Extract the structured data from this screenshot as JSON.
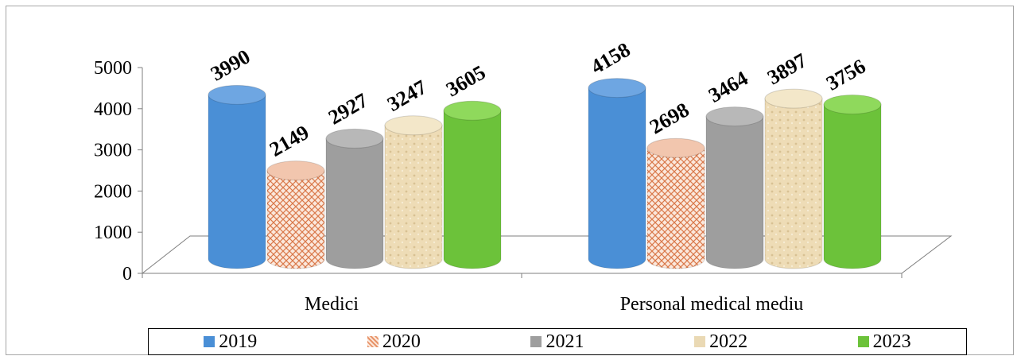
{
  "chart_data": {
    "type": "bar",
    "categories": [
      "Medici",
      "Personal medical mediu"
    ],
    "series": [
      {
        "name": "2019",
        "values": [
          3990,
          4158
        ],
        "color": "#4a8fd6"
      },
      {
        "name": "2020",
        "values": [
          2149,
          2698
        ],
        "color": "#e8946a"
      },
      {
        "name": "2021",
        "values": [
          2927,
          3464
        ],
        "color": "#9e9e9e"
      },
      {
        "name": "2022",
        "values": [
          3247,
          3897
        ],
        "color": "#ead9b4"
      },
      {
        "name": "2023",
        "values": [
          3605,
          3756
        ],
        "color": "#6cc23a"
      }
    ],
    "ylim": [
      0,
      5000
    ],
    "yticks": [
      "0",
      "1000",
      "2000",
      "3000",
      "4000",
      "5000"
    ],
    "legend_position": "bottom",
    "grid": false,
    "style": "3d-cylinder"
  }
}
